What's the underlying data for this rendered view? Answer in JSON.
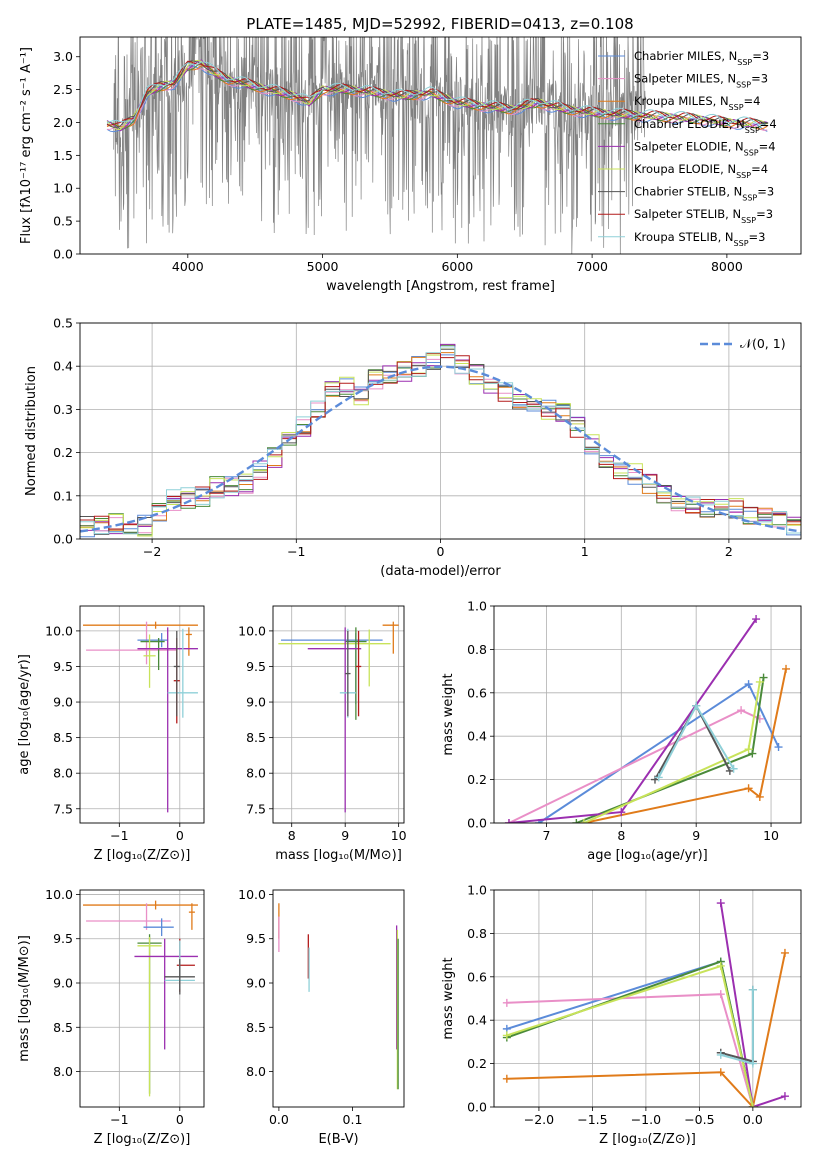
{
  "figure": {
    "title": "PLATE=1485, MJD=52992, FIBERID=0413, z=0.108"
  },
  "series_colors": {
    "Chabrier MILES": "#5b8bd9",
    "Salpeter MILES": "#e98fc7",
    "Kroupa MILES": "#e07b1a",
    "Chabrier ELODIE": "#4a8a3a",
    "Salpeter ELODIE": "#9b2fb0",
    "Kroupa ELODIE": "#c8e35a",
    "Chabrier STELIB": "#555555",
    "Salpeter STELIB": "#b31b1b",
    "Kroupa STELIB": "#8fd0d8"
  },
  "chart_data": [
    {
      "id": "spectrum",
      "type": "line",
      "xlabel": "wavelength [Angstrom, rest frame]",
      "ylabel": "Flux [fλ10⁻¹⁷ erg cm⁻² s⁻¹ A⁻¹]",
      "xlim": [
        3200,
        8550
      ],
      "ylim": [
        0,
        3.3
      ],
      "xticks": [
        4000,
        5000,
        6000,
        7000,
        8000
      ],
      "yticks": [
        0.0,
        0.5,
        1.0,
        1.5,
        2.0,
        2.5,
        3.0
      ],
      "grid": false,
      "legend_position": "top-right",
      "legend": [
        {
          "name": "Chabrier MILES",
          "label": "Chabrier MILES, N",
          "sub": "SSP",
          "suffix": "=3"
        },
        {
          "name": "Salpeter MILES",
          "label": "Salpeter MILES, N",
          "sub": "SSP",
          "suffix": "=3"
        },
        {
          "name": "Kroupa MILES",
          "label": "Kroupa MILES, N",
          "sub": "SSP",
          "suffix": "=4"
        },
        {
          "name": "Chabrier ELODIE",
          "label": "Chabrier ELODIE, N",
          "sub": "SSP",
          "suffix": "=4"
        },
        {
          "name": "Salpeter ELODIE",
          "label": "Salpeter ELODIE, N",
          "sub": "SSP",
          "suffix": "=4"
        },
        {
          "name": "Kroupa ELODIE",
          "label": "Kroupa ELODIE, N",
          "sub": "SSP",
          "suffix": "=4"
        },
        {
          "name": "Chabrier STELIB",
          "label": "Chabrier STELIB, N",
          "sub": "SSP",
          "suffix": "=3"
        },
        {
          "name": "Salpeter STELIB",
          "label": "Salpeter STELIB, N",
          "sub": "SSP",
          "suffix": "=3"
        },
        {
          "name": "Kroupa STELIB",
          "label": "Kroupa STELIB, N",
          "sub": "SSP",
          "suffix": "=3"
        }
      ],
      "model_continuum": {
        "x": [
          3400,
          3500,
          3600,
          3700,
          3800,
          3900,
          4000,
          4100,
          4200,
          4300,
          4400,
          4500,
          4600,
          4700,
          4800,
          4900,
          5000,
          5200,
          5400,
          5600,
          5800,
          6000,
          6200,
          6400,
          6600,
          6800,
          7000,
          7200,
          7400,
          7600,
          7800,
          8000,
          8200,
          8300
        ],
        "y": [
          1.98,
          1.92,
          2.05,
          2.45,
          2.55,
          2.6,
          2.85,
          2.9,
          2.75,
          2.65,
          2.6,
          2.55,
          2.5,
          2.45,
          2.4,
          2.3,
          2.5,
          2.5,
          2.45,
          2.4,
          2.45,
          2.3,
          2.25,
          2.2,
          2.3,
          2.2,
          2.15,
          2.12,
          2.1,
          2.08,
          2.05,
          2.0,
          1.98,
          1.96
        ]
      }
    },
    {
      "id": "residual-hist",
      "type": "step",
      "xlabel": "(data-model)/error",
      "ylabel": "Normed distribution",
      "xlim": [
        -2.5,
        2.5
      ],
      "ylim": [
        0,
        0.5
      ],
      "xticks": [
        -2,
        -1,
        0,
        1,
        2
      ],
      "yticks": [
        0.0,
        0.1,
        0.2,
        0.3,
        0.4,
        0.5
      ],
      "grid": true,
      "legend_position": "top-right",
      "legend": [
        {
          "name": "N(0,1)",
          "label": "𝒩(0, 1)"
        }
      ],
      "bin_edges_start": -2.5,
      "bin_width": 0.1,
      "reference_values": [
        0.028,
        0.034,
        0.037,
        0.03,
        0.032,
        0.06,
        0.09,
        0.095,
        0.1,
        0.12,
        0.12,
        0.13,
        0.16,
        0.19,
        0.24,
        0.26,
        0.3,
        0.34,
        0.35,
        0.33,
        0.37,
        0.38,
        0.39,
        0.4,
        0.41,
        0.43,
        0.4,
        0.38,
        0.36,
        0.34,
        0.32,
        0.31,
        0.3,
        0.29,
        0.26,
        0.22,
        0.19,
        0.16,
        0.15,
        0.13,
        0.1,
        0.09,
        0.08,
        0.07,
        0.08,
        0.07,
        0.05,
        0.05,
        0.04,
        0.03
      ]
    },
    {
      "id": "age-vs-z",
      "type": "errorbar",
      "xlabel": "Z [log₁₀(Z/Z⊙)]",
      "ylabel": "age  [log₁₀(age/yr)]",
      "xlim": [
        -1.65,
        0.4
      ],
      "ylim": [
        7.3,
        10.35
      ],
      "xticks": [
        -1,
        0
      ],
      "yticks": [
        7.5,
        8.0,
        8.5,
        9.0,
        9.5,
        10.0
      ],
      "grid": true,
      "points": [
        {
          "series": "Kroupa MILES",
          "x": -0.4,
          "y": 10.08,
          "xerr": [
            1.2,
            0.7
          ],
          "yerr": [
            0.05,
            0.05
          ]
        },
        {
          "series": "Kroupa MILES",
          "x": 0.15,
          "y": 9.95,
          "xerr": [
            0.05,
            0.05
          ],
          "yerr": [
            0.3,
            0.1
          ]
        },
        {
          "series": "Salpeter MILES",
          "x": -0.55,
          "y": 9.73,
          "xerr": [
            1.0,
            0.5
          ],
          "yerr": [
            0.2,
            0.4
          ]
        },
        {
          "series": "Chabrier MILES",
          "x": -0.3,
          "y": 9.87,
          "xerr": [
            0.4,
            0.1
          ],
          "yerr": [
            0.1,
            0.1
          ]
        },
        {
          "series": "Chabrier ELODIE",
          "x": -0.35,
          "y": 9.85,
          "xerr": [
            0.3,
            0.1
          ],
          "yerr": [
            0.4,
            0.05
          ]
        },
        {
          "series": "Kroupa ELODIE",
          "x": -0.5,
          "y": 9.65,
          "xerr": [
            0.1,
            0.1
          ],
          "yerr": [
            0.45,
            0.3
          ]
        },
        {
          "series": "Salpeter ELODIE",
          "x": -0.2,
          "y": 9.75,
          "xerr": [
            0.5,
            0.5
          ],
          "yerr": [
            2.3,
            0.3
          ]
        },
        {
          "series": "Salpeter STELIB",
          "x": -0.05,
          "y": 9.3,
          "xerr": [
            0.05,
            0.05
          ],
          "yerr": [
            0.6,
            0.6
          ]
        },
        {
          "series": "Kroupa STELIB",
          "x": 0.05,
          "y": 9.13,
          "xerr": [
            0.25,
            0.25
          ],
          "yerr": [
            0.35,
            0.9
          ]
        },
        {
          "series": "Chabrier STELIB",
          "x": -0.05,
          "y": 9.5,
          "xerr": [
            0.05,
            0.05
          ],
          "yerr": [
            0.7,
            0.5
          ]
        }
      ]
    },
    {
      "id": "age-vs-mass",
      "type": "errorbar",
      "xlabel": "mass [log₁₀(M/M⊙)]",
      "ylabel": "",
      "xlim": [
        7.65,
        10.1
      ],
      "ylim": [
        7.3,
        10.35
      ],
      "xticks": [
        8,
        9,
        10
      ],
      "yticks": [
        7.5,
        8.0,
        8.5,
        9.0,
        9.5,
        10.0
      ],
      "grid": true,
      "points": [
        {
          "series": "Kroupa MILES",
          "x": 9.9,
          "y": 10.08,
          "xerr": [
            0.2,
            0.1
          ],
          "yerr": [
            0.4,
            0.05
          ]
        },
        {
          "series": "Chabrier MILES",
          "x": 9.2,
          "y": 9.87,
          "xerr": [
            1.4,
            0.5
          ],
          "yerr": [
            0.9,
            0.1
          ]
        },
        {
          "series": "Kroupa ELODIE",
          "x": 9.45,
          "y": 9.82,
          "xerr": [
            1.7,
            0.4
          ],
          "yerr": [
            0.6,
            0.2
          ]
        },
        {
          "series": "Chabrier ELODIE",
          "x": 9.2,
          "y": 9.85,
          "xerr": [
            0.2,
            0.2
          ],
          "yerr": [
            1.1,
            0.2
          ]
        },
        {
          "series": "Salpeter ELODIE",
          "x": 9.0,
          "y": 9.75,
          "xerr": [
            0.7,
            0.3
          ],
          "yerr": [
            2.3,
            0.3
          ]
        },
        {
          "series": "Salpeter STELIB",
          "x": 9.25,
          "y": 9.5,
          "xerr": [
            0.05,
            0.05
          ],
          "yerr": [
            0.7,
            0.5
          ]
        },
        {
          "series": "Kroupa STELIB",
          "x": 9.05,
          "y": 9.13,
          "xerr": [
            0.15,
            0.15
          ],
          "yerr": [
            0.35,
            0.9
          ]
        },
        {
          "series": "Chabrier STELIB",
          "x": 9.05,
          "y": 9.4,
          "xerr": [
            0.05,
            0.05
          ],
          "yerr": [
            0.6,
            0.6
          ]
        }
      ]
    },
    {
      "id": "weight-vs-age",
      "type": "line",
      "xlabel": "age  [log₁₀(age/yr)]",
      "ylabel": "mass weight",
      "xlim": [
        6.3,
        10.4
      ],
      "ylim": [
        0,
        1.0
      ],
      "xticks": [
        7,
        8,
        9,
        10
      ],
      "yticks": [
        0.0,
        0.2,
        0.4,
        0.6,
        0.8,
        1.0
      ],
      "grid": true,
      "series": [
        {
          "name": "Chabrier MILES",
          "x": [
            6.9,
            9.7,
            10.1
          ],
          "y": [
            0.0,
            0.64,
            0.35
          ]
        },
        {
          "name": "Salpeter MILES",
          "x": [
            6.5,
            9.6,
            9.85
          ],
          "y": [
            0.0,
            0.52,
            0.48
          ]
        },
        {
          "name": "Kroupa MILES",
          "x": [
            7.5,
            9.7,
            9.85,
            10.2
          ],
          "y": [
            0.0,
            0.16,
            0.12,
            0.71
          ]
        },
        {
          "name": "Chabrier ELODIE",
          "x": [
            7.4,
            9.75,
            9.9
          ],
          "y": [
            0.0,
            0.32,
            0.67
          ]
        },
        {
          "name": "Salpeter ELODIE",
          "x": [
            6.5,
            8.0,
            9.8
          ],
          "y": [
            0.0,
            0.05,
            0.94
          ]
        },
        {
          "name": "Kroupa ELODIE",
          "x": [
            7.5,
            9.7,
            9.85
          ],
          "y": [
            0.0,
            0.34,
            0.65
          ]
        },
        {
          "name": "Chabrier STELIB",
          "x": [
            8.45,
            9.0,
            9.45
          ],
          "y": [
            0.2,
            0.54,
            0.24
          ]
        },
        {
          "name": "Kroupa STELIB",
          "x": [
            8.5,
            9.0,
            9.5
          ],
          "y": [
            0.21,
            0.54,
            0.25
          ]
        }
      ]
    },
    {
      "id": "mass-vs-z",
      "type": "errorbar",
      "xlabel": "Z [log₁₀(Z/Z⊙)]",
      "ylabel": "mass [log₁₀(M/M⊙)]",
      "xlim": [
        -1.65,
        0.4
      ],
      "ylim": [
        7.6,
        10.05
      ],
      "xticks": [
        -1,
        0
      ],
      "yticks": [
        8.0,
        8.5,
        9.0,
        9.5,
        10.0
      ],
      "grid": true,
      "points": [
        {
          "series": "Kroupa MILES",
          "x": -0.4,
          "y": 9.88,
          "xerr": [
            1.2,
            0.7
          ],
          "yerr": [
            0.05,
            0.05
          ]
        },
        {
          "series": "Kroupa MILES",
          "x": 0.2,
          "y": 9.8,
          "xerr": [
            0.05,
            0.05
          ],
          "yerr": [
            0.2,
            0.1
          ]
        },
        {
          "series": "Salpeter MILES",
          "x": -0.55,
          "y": 9.7,
          "xerr": [
            1.0,
            0.4
          ],
          "yerr": [
            0.1,
            0.2
          ]
        },
        {
          "series": "Chabrier MILES",
          "x": -0.3,
          "y": 9.63,
          "xerr": [
            0.3,
            0.2
          ],
          "yerr": [
            0.1,
            0.1
          ]
        },
        {
          "series": "Chabrier ELODIE",
          "x": -0.5,
          "y": 9.45,
          "xerr": [
            0.2,
            0.2
          ],
          "yerr": [
            1.7,
            0.1
          ]
        },
        {
          "series": "Kroupa ELODIE",
          "x": -0.5,
          "y": 9.42,
          "xerr": [
            0.2,
            0.2
          ],
          "yerr": [
            1.7,
            0.1
          ]
        },
        {
          "series": "Salpeter ELODIE",
          "x": -0.25,
          "y": 9.3,
          "xerr": [
            0.5,
            0.55
          ],
          "yerr": [
            1.05,
            0.2
          ]
        },
        {
          "series": "Salpeter STELIB",
          "x": 0.0,
          "y": 9.2,
          "xerr": [
            0.05,
            0.25
          ],
          "yerr": [
            0.3,
            0.3
          ]
        },
        {
          "series": "Kroupa STELIB",
          "x": 0.0,
          "y": 9.03,
          "xerr": [
            0.25,
            0.25
          ],
          "yerr": [
            0.1,
            0.45
          ]
        },
        {
          "series": "Chabrier STELIB",
          "x": 0.0,
          "y": 9.07,
          "xerr": [
            0.25,
            0.25
          ],
          "yerr": [
            0.2,
            0.2
          ]
        }
      ]
    },
    {
      "id": "mass-vs-ebv",
      "type": "errorbar",
      "xlabel": "E(B-V)",
      "ylabel": "",
      "xlim": [
        -0.008,
        0.17
      ],
      "ylim": [
        7.6,
        10.05
      ],
      "xticks": [
        0.0,
        0.1
      ],
      "yticks": [
        8.0,
        8.5,
        9.0,
        9.5,
        10.0
      ],
      "grid": false,
      "points": [
        {
          "series": "Kroupa MILES",
          "x": 0.0,
          "y": 9.7,
          "xerr": [
            0,
            0
          ],
          "yerr": [
            0.2,
            0.2
          ]
        },
        {
          "series": "Salpeter MILES",
          "x": 0.0,
          "y": 9.55,
          "xerr": [
            0,
            0
          ],
          "yerr": [
            0.2,
            0.2
          ]
        },
        {
          "series": "Salpeter STELIB",
          "x": 0.04,
          "y": 9.3,
          "xerr": [
            0,
            0
          ],
          "yerr": [
            0.25,
            0.25
          ]
        },
        {
          "series": "Kroupa STELIB",
          "x": 0.041,
          "y": 9.15,
          "xerr": [
            0,
            0
          ],
          "yerr": [
            0.25,
            0.25
          ]
        },
        {
          "series": "Salpeter ELODIE",
          "x": 0.16,
          "y": 9.3,
          "xerr": [
            0,
            0
          ],
          "yerr": [
            1.05,
            0.35
          ]
        },
        {
          "series": "Kroupa ELODIE",
          "x": 0.161,
          "y": 9.0,
          "xerr": [
            0,
            0
          ],
          "yerr": [
            1.2,
            0.6
          ]
        },
        {
          "series": "Chabrier ELODIE",
          "x": 0.162,
          "y": 9.0,
          "xerr": [
            0,
            0
          ],
          "yerr": [
            1.2,
            0.5
          ]
        }
      ]
    },
    {
      "id": "weight-vs-z",
      "type": "line",
      "xlabel": "Z [log₁₀(Z/Z⊙)]",
      "ylabel": "mass weight",
      "xlim": [
        -2.42,
        0.45
      ],
      "ylim": [
        0,
        1.0
      ],
      "xticks": [
        -2.0,
        -1.5,
        -1.0,
        -0.5,
        0.0
      ],
      "yticks": [
        0.0,
        0.2,
        0.4,
        0.6,
        0.8,
        1.0
      ],
      "grid": true,
      "series": [
        {
          "name": "Chabrier MILES",
          "x": [
            -2.3,
            -0.3,
            0.0
          ],
          "y": [
            0.36,
            0.67,
            0.0
          ]
        },
        {
          "name": "Salpeter MILES",
          "x": [
            -2.3,
            -0.3,
            0.0
          ],
          "y": [
            0.48,
            0.52,
            0.0
          ]
        },
        {
          "name": "Kroupa MILES",
          "x": [
            -2.3,
            -0.3,
            0.0,
            0.3
          ],
          "y": [
            0.13,
            0.16,
            0.0,
            0.71
          ]
        },
        {
          "name": "Chabrier ELODIE",
          "x": [
            -2.3,
            -0.3,
            0.0
          ],
          "y": [
            0.32,
            0.67,
            0.0
          ]
        },
        {
          "name": "Salpeter ELODIE",
          "x": [
            -0.3,
            0.0,
            0.3
          ],
          "y": [
            0.94,
            0.0,
            0.05
          ]
        },
        {
          "name": "Kroupa ELODIE",
          "x": [
            -2.3,
            -0.3,
            0.0
          ],
          "y": [
            0.33,
            0.65,
            0.0
          ]
        },
        {
          "name": "Chabrier STELIB",
          "x": [
            -0.3,
            0.0,
            0.0
          ],
          "y": [
            0.25,
            0.21,
            0.54
          ]
        },
        {
          "name": "Kroupa STELIB",
          "x": [
            -0.3,
            0.0,
            0.0
          ],
          "y": [
            0.24,
            0.2,
            0.54
          ]
        }
      ]
    }
  ]
}
